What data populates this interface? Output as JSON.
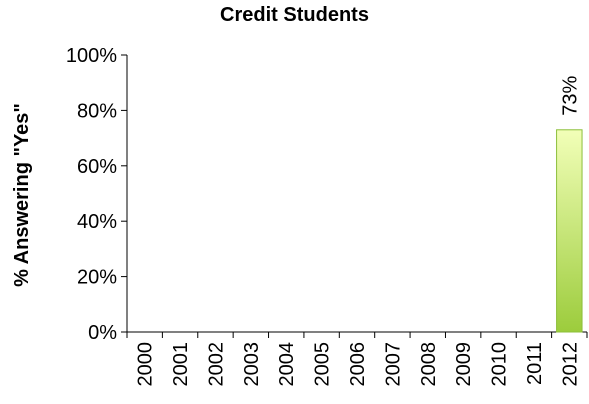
{
  "chart_data": {
    "type": "bar",
    "title": "Credit Students",
    "xlabel": "",
    "ylabel": "% Answering \"Yes\"",
    "ylim": [
      0,
      100
    ],
    "yticks": [
      0,
      20,
      40,
      60,
      80,
      100
    ],
    "ytick_labels": [
      "0%",
      "20%",
      "40%",
      "60%",
      "80%",
      "100%"
    ],
    "categories": [
      "2000",
      "2001",
      "2002",
      "2003",
      "2004",
      "2005",
      "2006",
      "2007",
      "2008",
      "2009",
      "2010",
      "2011",
      "2012"
    ],
    "values": [
      null,
      null,
      null,
      null,
      null,
      null,
      null,
      null,
      null,
      null,
      null,
      null,
      73
    ],
    "data_labels": [
      "",
      "",
      "",
      "",
      "",
      "",
      "",
      "",
      "",
      "",
      "",
      "",
      "73%"
    ],
    "grid": false,
    "legend": "none",
    "bar_color_top": "#f2ffb8",
    "bar_color_bottom": "#9ccc3c",
    "bar_border": "#8cbf3a"
  }
}
